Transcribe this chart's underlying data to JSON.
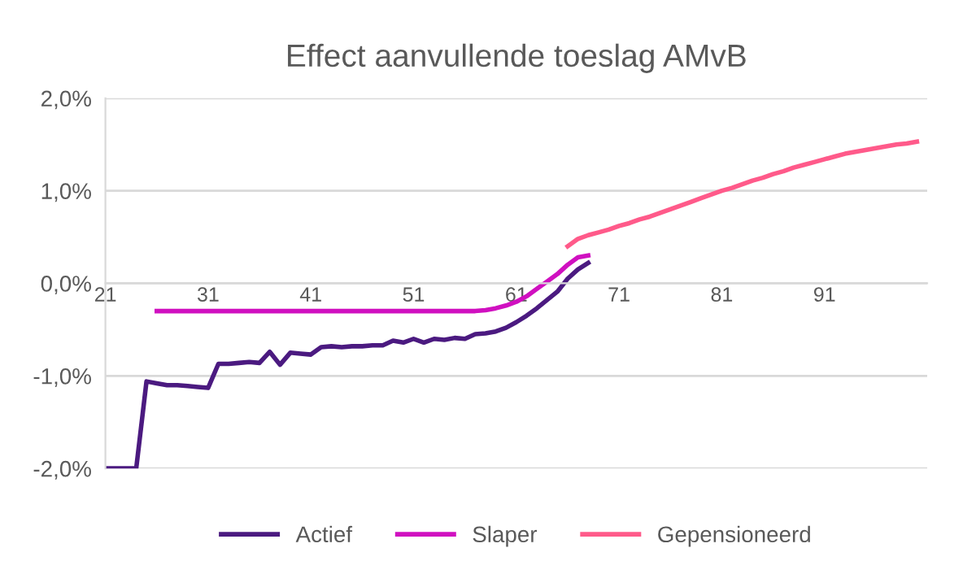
{
  "chart_data": {
    "type": "line",
    "title": "Effect aanvullende toeslag AMvB",
    "xlim": [
      21,
      101
    ],
    "xticks": [
      21,
      31,
      41,
      51,
      61,
      71,
      81,
      91
    ],
    "ylim": [
      -2,
      2
    ],
    "yticks": [
      {
        "value": -2,
        "label": "-2,0%"
      },
      {
        "value": -1,
        "label": "-1,0%"
      },
      {
        "value": 0,
        "label": "0,0%"
      },
      {
        "value": 1,
        "label": "1,0%"
      },
      {
        "value": 2,
        "label": "2,0%"
      }
    ],
    "grid": "y",
    "legend": "bottom",
    "marker": "none",
    "line_style": "solid",
    "series": [
      {
        "name": "Actief",
        "color": "#4b1a80",
        "x": [
          21,
          22,
          23,
          24,
          25,
          26,
          27,
          28,
          29,
          30,
          31,
          32,
          33,
          34,
          35,
          36,
          37,
          38,
          39,
          40,
          41,
          42,
          43,
          44,
          45,
          46,
          47,
          48,
          49,
          50,
          51,
          52,
          53,
          54,
          55,
          56,
          57,
          58,
          59,
          60,
          61,
          62,
          63,
          64,
          65,
          66,
          67,
          68
        ],
        "values": [
          -2.0,
          -2.0,
          -2.0,
          -2.0,
          -1.06,
          -1.08,
          -1.1,
          -1.1,
          -1.11,
          -1.12,
          -1.13,
          -0.87,
          -0.87,
          -0.86,
          -0.85,
          -0.86,
          -0.74,
          -0.88,
          -0.75,
          -0.76,
          -0.77,
          -0.69,
          -0.68,
          -0.69,
          -0.68,
          -0.68,
          -0.67,
          -0.67,
          -0.62,
          -0.64,
          -0.6,
          -0.64,
          -0.6,
          -0.61,
          -0.59,
          -0.6,
          -0.55,
          -0.54,
          -0.52,
          -0.48,
          -0.42,
          -0.35,
          -0.27,
          -0.18,
          -0.09,
          0.05,
          0.15,
          0.22
        ]
      },
      {
        "name": "Slaper",
        "color": "#d010c0",
        "x": [
          26,
          57,
          58,
          59,
          60,
          61,
          62,
          63,
          64,
          65,
          66,
          67,
          68
        ],
        "values": [
          -0.3,
          -0.3,
          -0.29,
          -0.27,
          -0.24,
          -0.2,
          -0.14,
          -0.06,
          0.02,
          0.1,
          0.2,
          0.28,
          0.3
        ]
      },
      {
        "name": "Gepensioneerd",
        "color": "#ff5a8a",
        "x": [
          66,
          67,
          68,
          69,
          70,
          71,
          72,
          73,
          74,
          75,
          76,
          77,
          78,
          79,
          80,
          81,
          82,
          83,
          84,
          85,
          86,
          87,
          88,
          89,
          90,
          91,
          92,
          93,
          94,
          95,
          96,
          97,
          98,
          99,
          100
        ],
        "values": [
          0.4,
          0.48,
          0.52,
          0.55,
          0.58,
          0.62,
          0.65,
          0.69,
          0.72,
          0.76,
          0.8,
          0.84,
          0.88,
          0.92,
          0.96,
          1.0,
          1.03,
          1.07,
          1.11,
          1.14,
          1.18,
          1.21,
          1.25,
          1.28,
          1.31,
          1.34,
          1.37,
          1.4,
          1.42,
          1.44,
          1.46,
          1.48,
          1.5,
          1.51,
          1.53
        ]
      }
    ]
  }
}
